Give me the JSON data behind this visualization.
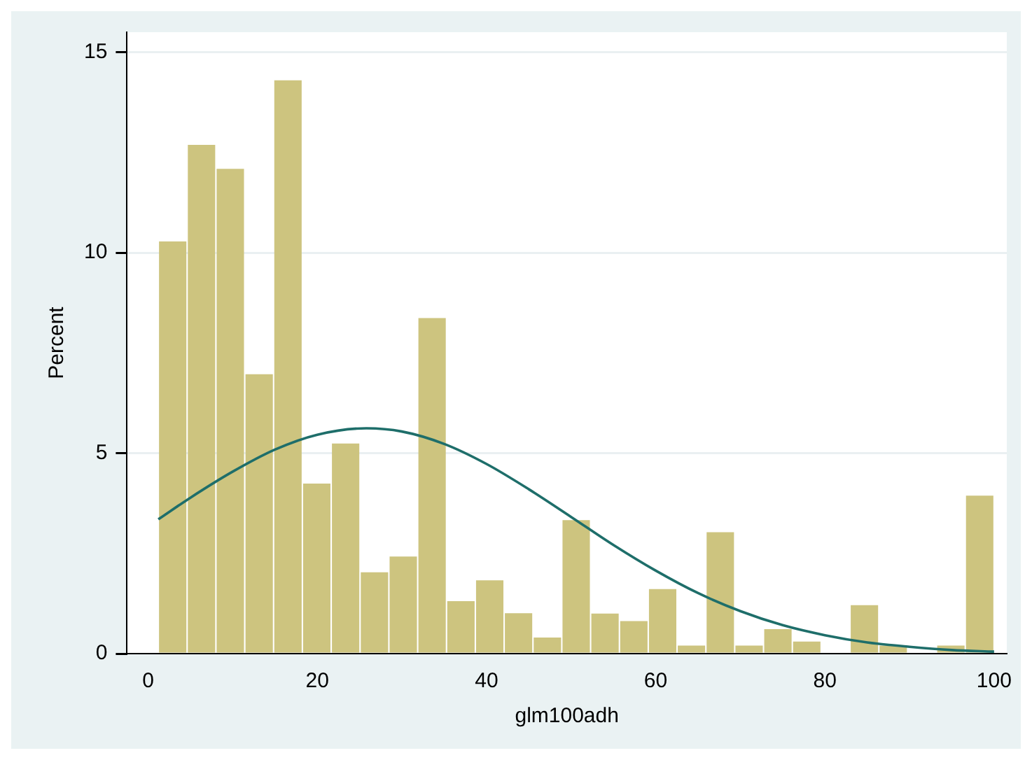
{
  "chart_data": {
    "type": "histogram",
    "xlabel": "glm100adh",
    "ylabel": "Percent",
    "bins": [
      1.2,
      4.61,
      8.01,
      11.42,
      14.83,
      18.23,
      21.64,
      25.05,
      28.46,
      31.86,
      35.27,
      38.68,
      42.08,
      45.49,
      48.9,
      52.3,
      55.71,
      59.12,
      62.52,
      65.93,
      69.34,
      72.74,
      76.15,
      79.56,
      82.97,
      86.37,
      89.78,
      93.19,
      96.59,
      100
    ],
    "values": [
      10.28,
      12.69,
      12.09,
      6.97,
      14.3,
      4.24,
      5.24,
      2.03,
      2.42,
      8.37,
      1.31,
      1.83,
      1.01,
      0.4,
      3.33,
      1.0,
      0.81,
      1.61,
      0.2,
      3.03,
      0.2,
      0.61,
      0.3,
      0,
      1.21,
      0.2,
      0,
      0.2,
      3.94
    ],
    "color": "#cdc47f",
    "series": [
      {
        "type": "line",
        "color": "#1e6e6a",
        "x": [
          1.2,
          5,
          10,
          15,
          20,
          25.8,
          30,
          35,
          40,
          45,
          50,
          55,
          60,
          65,
          70,
          75,
          80,
          85,
          90,
          95,
          100
        ],
        "values": [
          3.35,
          3.89,
          4.54,
          5.09,
          5.46,
          5.62,
          5.54,
          5.23,
          4.73,
          4.1,
          3.41,
          2.71,
          2.07,
          1.51,
          1.06,
          0.71,
          0.46,
          0.28,
          0.17,
          0.09,
          0.05
        ]
      }
    ],
    "xlim": [
      -2.5,
      101.5
    ],
    "xticks": [
      0,
      20,
      40,
      60,
      80,
      100
    ],
    "ylim": [
      0,
      15.5
    ],
    "yticks": [
      0,
      5,
      10,
      15
    ],
    "grid": "y",
    "legend": false,
    "marker": "none",
    "line_style": "solid"
  }
}
